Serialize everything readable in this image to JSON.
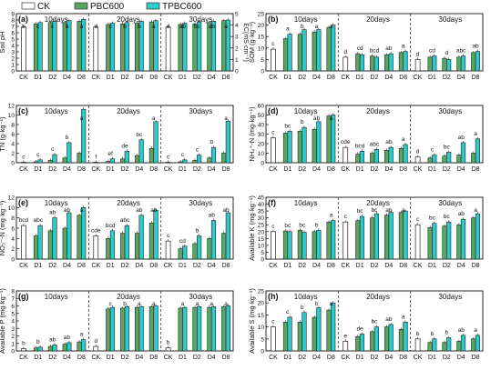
{
  "legend": {
    "entries": [
      {
        "label": "CK",
        "color": "#ffffff"
      },
      {
        "label": "PBC600",
        "color": "#5aa561"
      },
      {
        "label": "TPBC600",
        "color": "#2ec9c9"
      }
    ]
  },
  "chart_data": [
    {
      "type": "bar",
      "panel": "(a)",
      "ylabel": "Soil pH",
      "y2label": "EC(mS·cm⁻¹)",
      "ylim": [
        0,
        9
      ],
      "yticks": [
        0,
        1,
        2,
        3,
        4,
        5,
        6,
        7,
        8,
        9
      ],
      "y2lim": [
        0,
        5
      ],
      "y2ticks": [
        0,
        1,
        2,
        3,
        4,
        5
      ],
      "groups": [
        "10days",
        "20days",
        "30days"
      ],
      "categories": [
        "CK",
        "D1",
        "D2",
        "D4",
        "D8"
      ],
      "series": [
        {
          "values": [
            [
              6.9,
              7.4,
              7.6,
              7.6,
              7.8
            ],
            [
              6.9,
              7.3,
              7.4,
              7.5,
              7.7
            ],
            [
              6.9,
              7.3,
              7.4,
              7.6,
              7.9
            ]
          ]
        },
        {
          "values": [
            [
              6.9,
              7.6,
              7.8,
              7.9,
              8.1
            ],
            [
              6.9,
              7.5,
              7.6,
              7.8,
              7.9
            ],
            [
              6.9,
              7.5,
              7.7,
              7.8,
              8.0
            ]
          ]
        }
      ],
      "ck_values": [
        6.9,
        6.9,
        6.9
      ],
      "labels": [
        [
          "b",
          "c",
          "c",
          "b",
          "a"
        ],
        [
          "d",
          "c",
          "b",
          "b",
          "a"
        ],
        [
          "d",
          "ab",
          "bc",
          "ab",
          "a"
        ]
      ]
    },
    {
      "type": "bar",
      "panel": "(b)",
      "ylabel": "SOM (g·kg⁻¹)",
      "ylim": [
        0,
        25
      ],
      "yticks": [
        0,
        5,
        10,
        15,
        20,
        25
      ],
      "groups": [
        "10days",
        "20days",
        "30days"
      ],
      "categories": [
        "CK",
        "D1",
        "D2",
        "D4",
        "D8"
      ],
      "series": [
        {
          "values": [
            [
              9.5,
              14,
              16,
              17,
              19
            ],
            [
              6,
              7.5,
              6.5,
              7,
              8
            ],
            [
              5,
              6,
              5.5,
              6,
              8
            ]
          ]
        },
        {
          "values": [
            [
              9.5,
              16,
              18,
              18,
              20
            ],
            [
              6,
              7,
              6,
              7.5,
              8.5
            ],
            [
              5,
              6.5,
              5,
              6.5,
              8.5
            ]
          ]
        }
      ],
      "ck_values": [
        9.5,
        6,
        5
      ],
      "labels": [
        [
          "c",
          "a",
          "b",
          "a",
          "a"
        ],
        [
          "d",
          "cd",
          "bcd",
          "ab",
          "a"
        ],
        [
          "d",
          "cd",
          "d",
          "abc",
          "ab"
        ]
      ]
    },
    {
      "type": "bar",
      "panel": "(c)",
      "ylabel": "TN (g·kg⁻¹)",
      "ylim": [
        0,
        12
      ],
      "yticks": [
        0,
        2,
        4,
        6,
        8,
        10,
        12
      ],
      "groups": [
        "10days",
        "20days",
        "30days"
      ],
      "categories": [
        "CK",
        "D1",
        "D2",
        "D4",
        "D8"
      ],
      "series": [
        {
          "values": [
            [
              0.1,
              0.2,
              0.5,
              1.0,
              2.0
            ],
            [
              0.1,
              0.3,
              0.8,
              1.5,
              3.0
            ],
            [
              0.1,
              0.2,
              0.5,
              1.0,
              2.0
            ]
          ]
        },
        {
          "values": [
            [
              0.1,
              0.6,
              1.7,
              4.2,
              11.2
            ],
            [
              0.1,
              0.8,
              2.4,
              4.8,
              8.6
            ],
            [
              0.1,
              0.6,
              1.6,
              3.2,
              8.7
            ]
          ]
        }
      ],
      "ck_values": [
        0.1,
        0.1,
        0.1
      ],
      "labels": [
        [
          "c",
          "c",
          "c",
          "b",
          "a"
        ],
        [
          "f",
          "ef",
          "de",
          "bc",
          "a"
        ],
        [
          "c",
          "c",
          "c",
          "b",
          "a"
        ]
      ]
    },
    {
      "type": "bar",
      "panel": "(d)",
      "ylabel": "NH₄⁺-N (mg·kg⁻¹)",
      "ylim": [
        0,
        60
      ],
      "yticks": [
        0,
        10,
        20,
        30,
        40,
        50,
        60
      ],
      "groups": [
        "10days",
        "20days",
        "30days"
      ],
      "categories": [
        "CK",
        "D1",
        "D2",
        "D4",
        "D8"
      ],
      "series": [
        {
          "values": [
            [
              26,
              31,
              33,
              35,
              49
            ],
            [
              16,
              9,
              10,
              13,
              15
            ],
            [
              6,
              5,
              7,
              8,
              10
            ]
          ]
        },
        {
          "values": [
            [
              26,
              33,
              37,
              43,
              50
            ],
            [
              16,
              12,
              14,
              16,
              19
            ],
            [
              6,
              8,
              11,
              21,
              25
            ]
          ]
        }
      ],
      "ck_values": [
        26,
        16,
        6
      ],
      "labels": [
        [
          "c",
          "bc",
          "b",
          "ab",
          "a"
        ],
        [
          "cde",
          "bcd",
          "abc",
          "ab",
          "a"
        ],
        [
          "d",
          "c",
          "bc",
          "ab",
          "a"
        ]
      ]
    },
    {
      "type": "bar",
      "panel": "(e)",
      "ylabel": "NO₃⁻-N (mg·kg⁻¹)",
      "ylim": [
        0,
        12
      ],
      "yticks": [
        0,
        2,
        4,
        6,
        8,
        10,
        12
      ],
      "groups": [
        "10days",
        "20days",
        "30days"
      ],
      "categories": [
        "CK",
        "D1",
        "D2",
        "D4",
        "D8"
      ],
      "series": [
        {
          "values": [
            [
              6.5,
              4.5,
              5.5,
              6.0,
              8.5
            ],
            [
              4.5,
              4.0,
              5.0,
              5.0,
              7.0
            ],
            [
              3.5,
              2.0,
              3.0,
              4.0,
              5.0
            ]
          ]
        },
        {
          "values": [
            [
              6.5,
              6.5,
              8.0,
              9.0,
              10.0
            ],
            [
              4.5,
              5.5,
              6.5,
              8.5,
              9.5
            ],
            [
              3.5,
              2.5,
              4.5,
              7.5,
              9.0
            ]
          ]
        }
      ],
      "ck_values": [
        6.5,
        4.5,
        3.5
      ],
      "labels": [
        [
          "bcd",
          "abc",
          "ab",
          "ab",
          "a"
        ],
        [
          "cde",
          "bcd",
          "abc",
          "ab",
          "ab"
        ],
        [
          "c",
          "cd",
          "b",
          "ab",
          "ab"
        ]
      ]
    },
    {
      "type": "bar",
      "panel": "(f)",
      "ylabel": "Available K (mg·kg⁻¹)",
      "ylim": [
        0,
        45
      ],
      "yticks": [
        0,
        5,
        10,
        15,
        20,
        25,
        30,
        35,
        40,
        45
      ],
      "groups": [
        "10days",
        "20days",
        "30days"
      ],
      "categories": [
        "CK",
        "D1",
        "D2",
        "D4",
        "D8"
      ],
      "series": [
        {
          "values": [
            [
              20,
              20.5,
              21,
              20,
              27
            ],
            [
              27,
              28,
              30,
              32,
              34
            ],
            [
              25,
              23,
              24,
              25,
              30
            ]
          ]
        },
        {
          "values": [
            [
              20,
              20,
              19.5,
              21,
              28
            ],
            [
              27,
              31,
              33,
              34,
              35
            ],
            [
              25,
              26,
              27,
              29,
              33
            ]
          ]
        }
      ],
      "ck_values": [
        20,
        27,
        25
      ],
      "labels": [
        [
          "c",
          "bc",
          "bc",
          "b",
          "a"
        ],
        [
          "c",
          "bc",
          "bc",
          "ab",
          "a"
        ],
        [
          "c",
          "bc",
          "bc",
          "ab",
          "a"
        ]
      ]
    },
    {
      "type": "bar",
      "panel": "(g)",
      "ylabel": "Available P (mg·kg⁻¹)",
      "ylim": [
        0,
        8
      ],
      "yticks": [
        0,
        1,
        2,
        3,
        4,
        5,
        6,
        7,
        8
      ],
      "groups": [
        "10days",
        "20days",
        "30days"
      ],
      "categories": [
        "CK",
        "D1",
        "D2",
        "D4",
        "D8"
      ],
      "series": [
        {
          "values": [
            [
              0.3,
              0.4,
              0.6,
              0.9,
              1.2
            ],
            [
              0.6,
              5.6,
              5.7,
              5.8,
              5.9
            ],
            [
              0.4,
              5.7,
              5.8,
              5.8,
              5.9
            ]
          ]
        },
        {
          "values": [
            [
              0.3,
              0.5,
              0.8,
              1.1,
              1.5
            ],
            [
              0.6,
              5.8,
              5.9,
              5.9,
              6.0
            ],
            [
              0.4,
              5.8,
              5.9,
              5.9,
              6.0
            ]
          ]
        }
      ],
      "ck_values": [
        0.3,
        0.6,
        0.4
      ],
      "labels": [
        [
          "b",
          "b",
          "ab",
          "ab",
          "a"
        ],
        [
          "d",
          "c",
          "b",
          "a",
          "a"
        ],
        [
          "b",
          "a",
          "a",
          "a",
          "a"
        ]
      ]
    },
    {
      "type": "bar",
      "panel": "(h)",
      "ylabel": "Available S (mg·kg⁻¹)",
      "ylim": [
        0,
        25
      ],
      "yticks": [
        0,
        5,
        10,
        15,
        20,
        25
      ],
      "groups": [
        "10days",
        "20days",
        "30days"
      ],
      "categories": [
        "CK",
        "D1",
        "D2",
        "D4",
        "D8"
      ],
      "series": [
        {
          "values": [
            [
              10,
              12,
              12,
              14,
              17
            ],
            [
              4,
              6,
              8,
              10,
              9
            ],
            [
              5,
              3.5,
              3.5,
              4,
              5
            ]
          ]
        },
        {
          "values": [
            [
              10,
              14,
              16,
              18,
              20
            ],
            [
              4,
              7,
              10,
              11,
              12
            ],
            [
              5,
              5,
              5.5,
              6.5,
              6.5
            ]
          ]
        }
      ],
      "ck_values": [
        10,
        4,
        5
      ],
      "labels": [
        [
          "c",
          "c",
          "b",
          "b",
          "a"
        ],
        [
          "e",
          "de",
          "bc",
          "ab",
          "a"
        ],
        [
          "b",
          "b",
          "b",
          "ab",
          "a"
        ]
      ]
    }
  ]
}
